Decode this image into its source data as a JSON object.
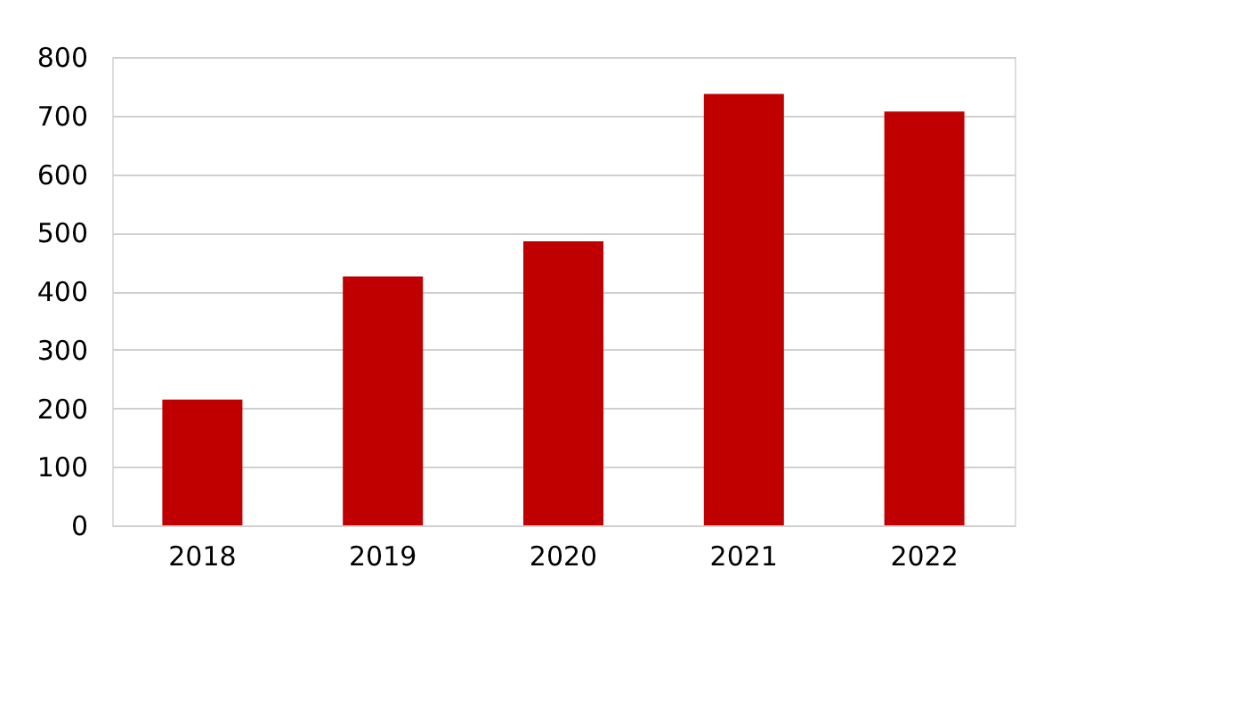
{
  "chart_data": {
    "type": "bar",
    "categories": [
      "2018",
      "2019",
      "2020",
      "2021",
      "2022"
    ],
    "values": [
      215,
      425,
      485,
      737,
      707
    ],
    "color": "#c00000",
    "ylim": [
      0,
      800
    ],
    "yticks": [
      0,
      100,
      200,
      300,
      400,
      500,
      600,
      700,
      800
    ],
    "grid": "y"
  }
}
